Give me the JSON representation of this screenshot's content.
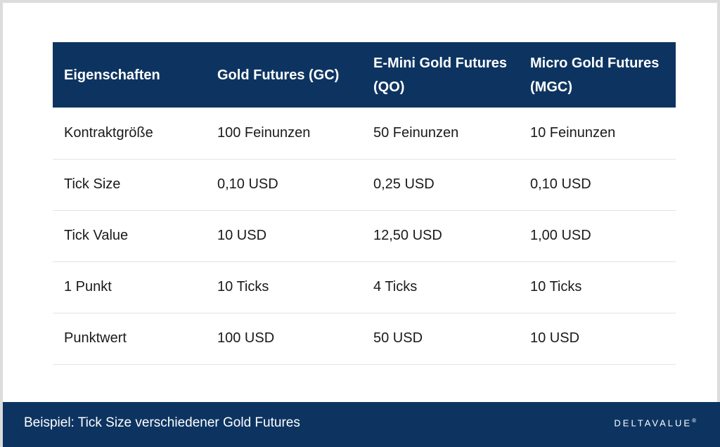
{
  "table": {
    "headers": [
      "Eigenschaften",
      "Gold Futures (GC)",
      "E-Mini Gold Futures (QO)",
      "Micro Gold Futures (MGC)"
    ],
    "rows": [
      [
        "Kontraktgröße",
        "100 Feinunzen",
        "50 Feinunzen",
        "10 Feinunzen"
      ],
      [
        "Tick Size",
        "0,10 USD",
        "0,25 USD",
        "0,10 USD"
      ],
      [
        "Tick Value",
        "10 USD",
        "12,50 USD",
        "1,00 USD"
      ],
      [
        "1 Punkt",
        "10 Ticks",
        "4 Ticks",
        "10 Ticks"
      ],
      [
        "Punktwert",
        "100 USD",
        "50 USD",
        "10 USD"
      ]
    ]
  },
  "footer": {
    "caption": "Beispiel: Tick Size verschiedener Gold Futures",
    "logo_text": "DELTAVALUE",
    "logo_mark": "®"
  },
  "colors": {
    "header_bg": "#0d3461",
    "footer_bg": "#0d3461",
    "text": "#1a1a1a",
    "row_divider": "#e3e3e3"
  }
}
